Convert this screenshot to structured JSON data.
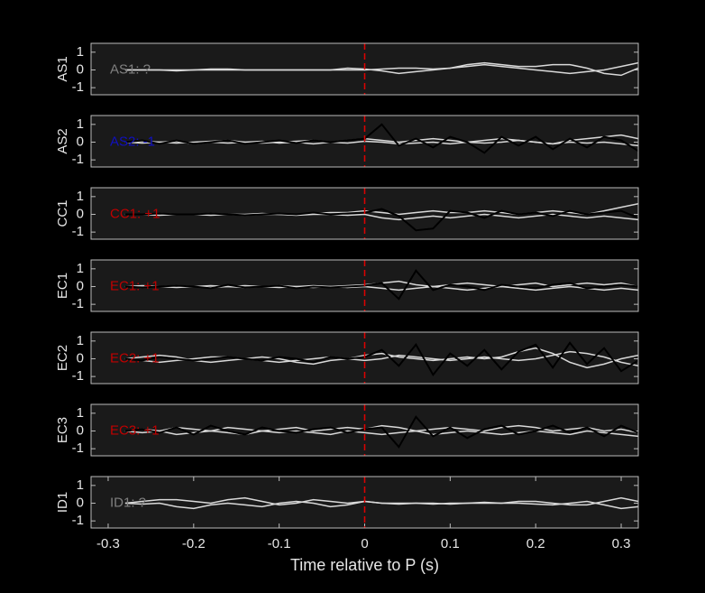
{
  "chart_data": [
    {
      "type": "line",
      "ylabel": "AS1",
      "annotation": "AS1: ?",
      "annotation_color": "#808080",
      "xlim": [
        -0.32,
        0.32
      ],
      "ylim": [
        -1.4,
        1.5
      ],
      "yticks": [
        -1,
        0,
        1
      ],
      "vline": 0,
      "vline_color": "#e00000",
      "x": [
        -0.32,
        -0.3,
        -0.28,
        -0.26,
        -0.24,
        -0.22,
        -0.2,
        -0.18,
        -0.16,
        -0.14,
        -0.12,
        -0.1,
        -0.08,
        -0.06,
        -0.04,
        -0.02,
        0,
        0.02,
        0.04,
        0.06,
        0.08,
        0.1,
        0.12,
        0.14,
        0.16,
        0.18,
        0.2,
        0.22,
        0.24,
        0.26,
        0.28,
        0.3,
        0.32
      ],
      "series": [
        {
          "color": "#d9d9d9",
          "values": [
            null,
            null,
            0,
            0,
            0,
            0,
            0,
            0.05,
            0.05,
            0,
            0,
            0,
            0,
            0,
            0,
            0,
            0,
            0.05,
            0.1,
            0.1,
            0.05,
            0.1,
            0.2,
            0.3,
            0.2,
            0.1,
            0,
            -0.1,
            -0.2,
            -0.1,
            0,
            0.2,
            0.4
          ]
        },
        {
          "color": "#d9d9d9",
          "values": [
            null,
            null,
            0,
            0,
            0,
            -0.05,
            0,
            0,
            0,
            0,
            0,
            0,
            0,
            0,
            0,
            0.1,
            0.05,
            -0.05,
            -0.2,
            -0.1,
            0,
            0.1,
            0.3,
            0.4,
            0.3,
            0.2,
            0.2,
            0.3,
            0.3,
            0.1,
            -0.2,
            -0.3,
            0.1
          ]
        }
      ]
    },
    {
      "type": "line",
      "ylabel": "AS2",
      "annotation": "AS2: -1",
      "annotation_color": "#1010c0",
      "xlim": [
        -0.32,
        0.32
      ],
      "ylim": [
        -1.4,
        1.5
      ],
      "yticks": [
        -1,
        0,
        1
      ],
      "vline": 0,
      "vline_color": "#e00000",
      "x": [
        -0.32,
        -0.3,
        -0.28,
        -0.26,
        -0.24,
        -0.22,
        -0.2,
        -0.18,
        -0.16,
        -0.14,
        -0.12,
        -0.1,
        -0.08,
        -0.06,
        -0.04,
        -0.02,
        0,
        0.02,
        0.04,
        0.06,
        0.08,
        0.1,
        0.12,
        0.14,
        0.16,
        0.18,
        0.2,
        0.22,
        0.24,
        0.26,
        0.28,
        0.3,
        0.32
      ],
      "series": [
        {
          "color": "#d9d9d9",
          "values": [
            null,
            null,
            0,
            0.05,
            0,
            -0.05,
            0,
            0.05,
            0.1,
            0,
            -0.05,
            0,
            0.05,
            0.1,
            0,
            0.1,
            0.2,
            0.1,
            0,
            0.1,
            0.2,
            0.1,
            0,
            0.1,
            0.2,
            0.1,
            0,
            -0.1,
            0.1,
            0.2,
            0.3,
            0.4,
            0.2
          ]
        },
        {
          "color": "#d9d9d9",
          "values": [
            null,
            null,
            0,
            -0.05,
            0,
            0.05,
            -0.1,
            0,
            -0.05,
            0,
            0.05,
            -0.05,
            0,
            -0.1,
            0,
            -0.05,
            0.05,
            0,
            -0.1,
            -0.05,
            0,
            -0.1,
            0,
            -0.05,
            0,
            0.1,
            0,
            -0.1,
            0,
            -0.05,
            0,
            -0.1,
            -0.2
          ]
        },
        {
          "color": "#000000",
          "values": [
            null,
            null,
            0,
            0.1,
            -0.1,
            0.1,
            -0.1,
            0,
            0.1,
            -0.1,
            0,
            0.1,
            -0.05,
            0.1,
            0,
            0.1,
            0.2,
            1.0,
            -0.2,
            0.2,
            -0.3,
            0.3,
            0,
            -0.6,
            0.3,
            -0.2,
            0.3,
            -0.4,
            0.2,
            -0.3,
            0.3,
            0.1,
            -0.5
          ]
        }
      ]
    },
    {
      "type": "line",
      "ylabel": "CC1",
      "annotation": "CC1: +1",
      "annotation_color": "#c00000",
      "xlim": [
        -0.32,
        0.32
      ],
      "ylim": [
        -1.4,
        1.5
      ],
      "yticks": [
        -1,
        0,
        1
      ],
      "vline": 0,
      "vline_color": "#e00000",
      "x": [
        -0.32,
        -0.3,
        -0.28,
        -0.26,
        -0.24,
        -0.22,
        -0.2,
        -0.18,
        -0.16,
        -0.14,
        -0.12,
        -0.1,
        -0.08,
        -0.06,
        -0.04,
        -0.02,
        0,
        0.02,
        0.04,
        0.06,
        0.08,
        0.1,
        0.12,
        0.14,
        0.16,
        0.18,
        0.2,
        0.22,
        0.24,
        0.26,
        0.28,
        0.3,
        0.32
      ],
      "series": [
        {
          "color": "#d9d9d9",
          "values": [
            null,
            null,
            0,
            0,
            0.05,
            0,
            0,
            -0.05,
            0,
            0,
            0.05,
            0,
            0,
            0.05,
            0.1,
            0.1,
            0.2,
            0.1,
            0,
            0.1,
            0.2,
            0.1,
            0.1,
            0.2,
            0.1,
            0,
            0.1,
            0.2,
            0.1,
            0,
            0.2,
            0.4,
            0.6
          ]
        },
        {
          "color": "#d9d9d9",
          "values": [
            null,
            null,
            0,
            0,
            -0.05,
            0,
            0,
            0.05,
            0,
            -0.05,
            0,
            0,
            -0.05,
            0,
            0,
            -0.05,
            0,
            -0.2,
            -0.3,
            -0.2,
            -0.1,
            -0.2,
            -0.1,
            0,
            -0.1,
            -0.2,
            -0.1,
            0,
            -0.1,
            -0.2,
            -0.1,
            -0.2,
            -0.3
          ]
        },
        {
          "color": "#000000",
          "values": [
            null,
            null,
            0,
            0,
            0.05,
            0,
            0,
            0.05,
            0,
            -0.05,
            0,
            0.05,
            0,
            0.1,
            0,
            0.05,
            0.1,
            0.3,
            -0.1,
            -0.9,
            -0.8,
            0.2,
            0.1,
            -0.2,
            0.2,
            0,
            0.1,
            -0.1,
            0.2,
            0,
            0.1,
            0.2,
            -0.2
          ]
        }
      ]
    },
    {
      "type": "line",
      "ylabel": "EC1",
      "annotation": "EC1: +1",
      "annotation_color": "#c00000",
      "xlim": [
        -0.32,
        0.32
      ],
      "ylim": [
        -1.4,
        1.5
      ],
      "yticks": [
        -1,
        0,
        1
      ],
      "vline": 0,
      "vline_color": "#e00000",
      "x": [
        -0.32,
        -0.3,
        -0.28,
        -0.26,
        -0.24,
        -0.22,
        -0.2,
        -0.18,
        -0.16,
        -0.14,
        -0.12,
        -0.1,
        -0.08,
        -0.06,
        -0.04,
        -0.02,
        0,
        0.02,
        0.04,
        0.06,
        0.08,
        0.1,
        0.12,
        0.14,
        0.16,
        0.18,
        0.2,
        0.22,
        0.24,
        0.26,
        0.28,
        0.3,
        0.32
      ],
      "series": [
        {
          "color": "#d9d9d9",
          "values": [
            null,
            null,
            0,
            0.05,
            0,
            -0.05,
            0,
            0.05,
            0,
            -0.05,
            0,
            0.05,
            0,
            -0.05,
            0,
            0.05,
            0.1,
            0.2,
            0.3,
            0.1,
            0,
            0.1,
            0.2,
            0.1,
            0,
            0.1,
            0.2,
            0,
            0.1,
            0.2,
            0.1,
            0.2,
            0
          ]
        },
        {
          "color": "#d9d9d9",
          "values": [
            null,
            null,
            0,
            -0.05,
            0,
            0.05,
            0,
            -0.05,
            0,
            0.05,
            0,
            -0.05,
            0,
            0.05,
            0,
            -0.05,
            0,
            -0.1,
            -0.2,
            -0.1,
            0,
            -0.1,
            -0.2,
            -0.1,
            0,
            -0.1,
            -0.2,
            -0.1,
            0,
            -0.1,
            -0.2,
            -0.1,
            -0.2
          ]
        },
        {
          "color": "#000000",
          "values": [
            null,
            null,
            0,
            -0.05,
            0,
            0.05,
            0,
            -0.1,
            0.1,
            -0.05,
            0,
            0.05,
            -0.1,
            0,
            -0.05,
            0,
            0.05,
            0.2,
            -0.7,
            0.9,
            -0.2,
            0.1,
            0,
            -0.2,
            0.1,
            0,
            -0.1,
            0.1,
            0.2,
            -0.1,
            0,
            0.1,
            0
          ]
        }
      ]
    },
    {
      "type": "line",
      "ylabel": "EC2",
      "annotation": "EC2: +1",
      "annotation_color": "#c00000",
      "xlim": [
        -0.32,
        0.32
      ],
      "ylim": [
        -1.4,
        1.5
      ],
      "yticks": [
        -1,
        0,
        1
      ],
      "vline": 0,
      "vline_color": "#e00000",
      "x": [
        -0.32,
        -0.3,
        -0.28,
        -0.26,
        -0.24,
        -0.22,
        -0.2,
        -0.18,
        -0.16,
        -0.14,
        -0.12,
        -0.1,
        -0.08,
        -0.06,
        -0.04,
        -0.02,
        0,
        0.02,
        0.04,
        0.06,
        0.08,
        0.1,
        0.12,
        0.14,
        0.16,
        0.18,
        0.2,
        0.22,
        0.24,
        0.26,
        0.28,
        0.3,
        0.32
      ],
      "series": [
        {
          "color": "#d9d9d9",
          "values": [
            null,
            null,
            0,
            0.1,
            0.2,
            0.1,
            -0.1,
            -0.2,
            -0.1,
            0,
            0.1,
            0,
            -0.2,
            -0.3,
            -0.1,
            0,
            0.2,
            0.3,
            0.1,
            0,
            -0.1,
            0,
            0.1,
            0,
            0.1,
            0.4,
            0.6,
            0.3,
            -0.2,
            -0.5,
            -0.3,
            0,
            0.2
          ]
        },
        {
          "color": "#d9d9d9",
          "values": [
            null,
            null,
            0,
            -0.1,
            -0.2,
            -0.1,
            0,
            0.1,
            0.1,
            0,
            -0.1,
            -0.2,
            -0.1,
            0,
            0.1,
            0,
            -0.1,
            0,
            0.2,
            0.1,
            0,
            -0.1,
            0,
            0.1,
            0,
            -0.1,
            0,
            0.2,
            0.4,
            0.3,
            0.1,
            -0.2,
            -0.4
          ]
        },
        {
          "color": "#000000",
          "values": [
            null,
            null,
            0,
            -0.1,
            0.1,
            0,
            -0.1,
            0,
            0.1,
            0,
            -0.1,
            0.1,
            0,
            -0.2,
            0.1,
            0,
            0.1,
            0.5,
            -0.4,
            0.8,
            -0.9,
            0.3,
            -0.4,
            0.5,
            -0.6,
            0.4,
            0.8,
            -0.5,
            0.9,
            -0.3,
            0.6,
            -0.7,
            -0.1
          ]
        }
      ]
    },
    {
      "type": "line",
      "ylabel": "EC3",
      "annotation": "EC3: +1",
      "annotation_color": "#c00000",
      "xlim": [
        -0.32,
        0.32
      ],
      "ylim": [
        -1.4,
        1.5
      ],
      "yticks": [
        -1,
        0,
        1
      ],
      "vline": 0,
      "vline_color": "#e00000",
      "x": [
        -0.32,
        -0.3,
        -0.28,
        -0.26,
        -0.24,
        -0.22,
        -0.2,
        -0.18,
        -0.16,
        -0.14,
        -0.12,
        -0.1,
        -0.08,
        -0.06,
        -0.04,
        -0.02,
        0,
        0.02,
        0.04,
        0.06,
        0.08,
        0.1,
        0.12,
        0.14,
        0.16,
        0.18,
        0.2,
        0.22,
        0.24,
        0.26,
        0.28,
        0.3,
        0.32
      ],
      "series": [
        {
          "color": "#d9d9d9",
          "values": [
            null,
            null,
            0,
            0.1,
            0,
            0.2,
            0.1,
            0,
            0.2,
            0.1,
            0,
            0.1,
            0.2,
            0,
            0.1,
            0.2,
            0.1,
            0.3,
            0.2,
            0,
            0.1,
            0.2,
            0.1,
            0,
            0.2,
            0.3,
            0.2,
            0,
            0.1,
            0.2,
            0,
            0.1,
            -0.1
          ]
        },
        {
          "color": "#d9d9d9",
          "values": [
            null,
            null,
            0,
            -0.1,
            0,
            -0.2,
            -0.1,
            0,
            -0.1,
            -0.2,
            0,
            -0.1,
            0,
            -0.1,
            -0.2,
            0,
            -0.1,
            -0.2,
            -0.1,
            0,
            -0.2,
            -0.1,
            0,
            -0.1,
            -0.2,
            -0.1,
            0,
            -0.1,
            -0.2,
            0,
            -0.1,
            -0.2,
            -0.3
          ]
        },
        {
          "color": "#000000",
          "values": [
            null,
            null,
            0,
            0.1,
            -0.1,
            0.2,
            -0.2,
            0.3,
            0,
            -0.2,
            0.2,
            0,
            -0.1,
            0.1,
            0.2,
            -0.1,
            0.1,
            0.2,
            -0.9,
            0.8,
            -0.3,
            0.2,
            -0.4,
            0.1,
            0.3,
            -0.2,
            0,
            0.3,
            -0.1,
            0.2,
            -0.3,
            0.3,
            -0.1
          ]
        }
      ]
    },
    {
      "type": "line",
      "ylabel": "ID1",
      "annotation": "ID1: ?",
      "annotation_color": "#808080",
      "xlim": [
        -0.32,
        0.32
      ],
      "ylim": [
        -1.4,
        1.5
      ],
      "yticks": [
        -1,
        0,
        1
      ],
      "vline": 0,
      "vline_color": "#e00000",
      "xticks": [
        -0.3,
        -0.2,
        -0.1,
        0,
        0.1,
        0.2,
        0.3
      ],
      "xlabel": "Time relative to P (s)",
      "x": [
        -0.32,
        -0.3,
        -0.28,
        -0.26,
        -0.24,
        -0.22,
        -0.2,
        -0.18,
        -0.16,
        -0.14,
        -0.12,
        -0.1,
        -0.08,
        -0.06,
        -0.04,
        -0.02,
        0,
        0.02,
        0.04,
        0.06,
        0.08,
        0.1,
        0.12,
        0.14,
        0.16,
        0.18,
        0.2,
        0.22,
        0.24,
        0.26,
        0.28,
        0.3,
        0.32
      ],
      "series": [
        {
          "color": "#d9d9d9",
          "values": [
            null,
            null,
            0,
            0.1,
            0.2,
            0.2,
            0.1,
            0,
            0.2,
            0.3,
            0.1,
            -0.1,
            0,
            0.2,
            0.1,
            0,
            0.1,
            0,
            -0.05,
            0,
            0,
            -0.05,
            0,
            0,
            0,
            0.1,
            0.1,
            0,
            -0.1,
            -0.1,
            0.1,
            0.3,
            0.1
          ]
        },
        {
          "color": "#d9d9d9",
          "values": [
            null,
            null,
            0,
            -0.05,
            0,
            -0.2,
            -0.3,
            -0.1,
            0,
            -0.1,
            -0.2,
            0,
            0.1,
            0,
            -0.2,
            -0.1,
            0.1,
            0,
            0,
            0,
            -0.05,
            0,
            0,
            0.05,
            0,
            0,
            -0.05,
            -0.1,
            0,
            0.1,
            -0.1,
            -0.3,
            -0.2
          ]
        }
      ]
    }
  ]
}
